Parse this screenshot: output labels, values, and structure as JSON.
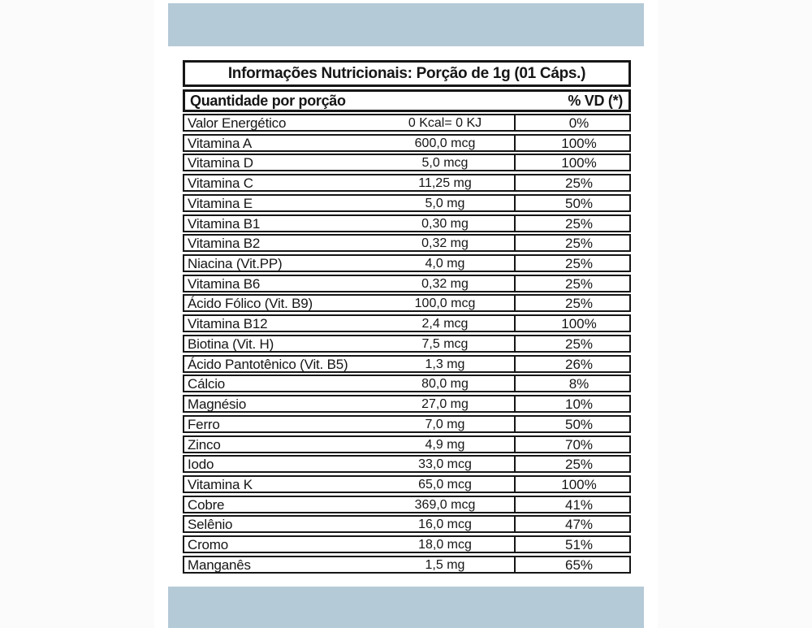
{
  "colors": {
    "band": "#b5cad7",
    "border": "#161616",
    "background": "#ffffff"
  },
  "table": {
    "title": "Informações Nutricionais: Porção de 1g (01 Cáps.)",
    "header": {
      "quantity_label": "Quantidade por porção",
      "dv_label": "% VD (*)"
    },
    "rows": [
      {
        "name": "Valor Energético",
        "amount": "0 Kcal= 0 KJ",
        "vd": "0%"
      },
      {
        "name": "Vitamina A",
        "amount": "600,0 mcg",
        "vd": "100%"
      },
      {
        "name": "Vitamina D",
        "amount": "5,0 mcg",
        "vd": "100%"
      },
      {
        "name": "Vitamina C",
        "amount": "11,25 mg",
        "vd": "25%"
      },
      {
        "name": "Vitamina E",
        "amount": "5,0 mg",
        "vd": "50%"
      },
      {
        "name": "Vitamina B1",
        "amount": "0,30 mg",
        "vd": "25%"
      },
      {
        "name": "Vitamina B2",
        "amount": "0,32 mg",
        "vd": "25%"
      },
      {
        "name": "Niacina (Vit.PP)",
        "amount": "4,0 mg",
        "vd": "25%"
      },
      {
        "name": "Vitamina B6",
        "amount": "0,32 mg",
        "vd": "25%"
      },
      {
        "name": "Ácido Fólico (Vit. B9)",
        "amount": "100,0 mcg",
        "vd": "25%"
      },
      {
        "name": "Vitamina B12",
        "amount": "2,4 mcg",
        "vd": "100%"
      },
      {
        "name": "Biotina (Vit. H)",
        "amount": "7,5 mcg",
        "vd": "25%"
      },
      {
        "name": "Ácido Pantotênico (Vit. B5)",
        "amount": "1,3 mg",
        "vd": "26%"
      },
      {
        "name": "Cálcio",
        "amount": "80,0 mg",
        "vd": "8%"
      },
      {
        "name": "Magnésio",
        "amount": "27,0 mg",
        "vd": "10%"
      },
      {
        "name": "Ferro",
        "amount": "7,0 mg",
        "vd": "50%"
      },
      {
        "name": "Zinco",
        "amount": "4,9 mg",
        "vd": "70%"
      },
      {
        "name": "Iodo",
        "amount": "33,0 mcg",
        "vd": "25%"
      },
      {
        "name": "Vitamina K",
        "amount": "65,0 mcg",
        "vd": "100%"
      },
      {
        "name": "Cobre",
        "amount": "369,0 mcg",
        "vd": "41%"
      },
      {
        "name": "Selênio",
        "amount": "16,0 mcg",
        "vd": "47%"
      },
      {
        "name": "Cromo",
        "amount": "18,0 mcg",
        "vd": "51%"
      },
      {
        "name": "Manganês",
        "amount": "1,5 mg",
        "vd": "65%"
      }
    ]
  }
}
